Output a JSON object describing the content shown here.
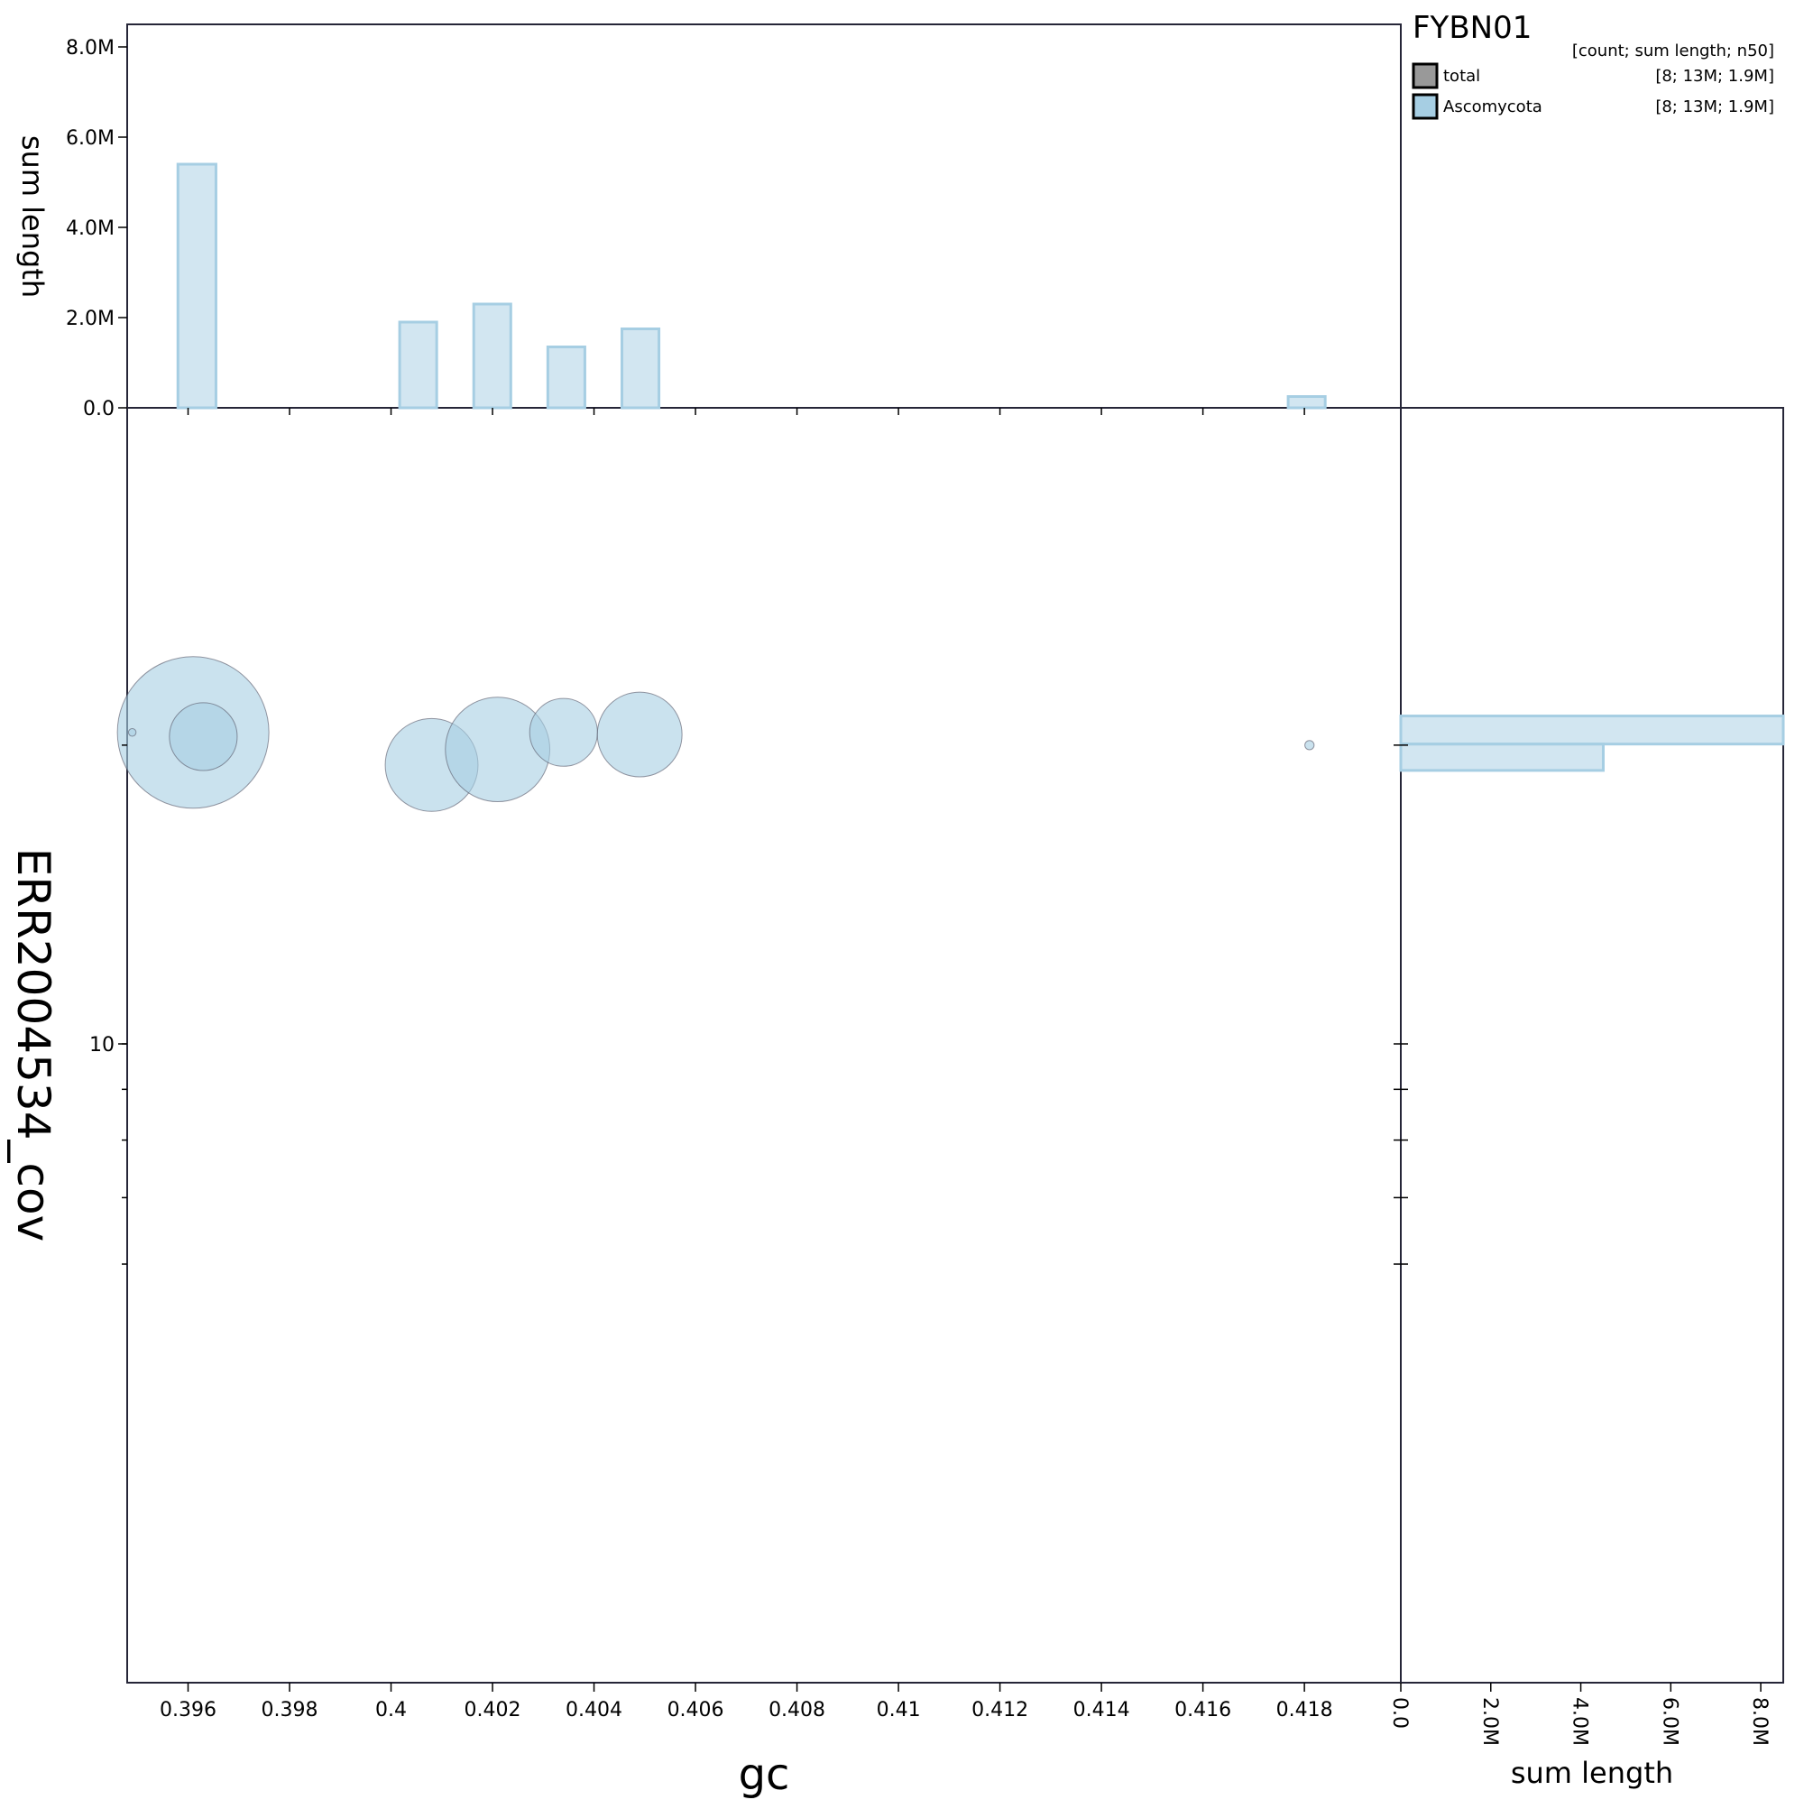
{
  "chart_data": {
    "type": "scatter",
    "title": "FYBN01",
    "xlabel": "gc",
    "ylabel": "ERR2004534_cov",
    "x_ticks": [
      "0.396",
      "0.398",
      "0.4",
      "0.402",
      "0.404",
      "0.406",
      "0.408",
      "0.41",
      "0.412",
      "0.414",
      "0.416",
      "0.418"
    ],
    "y_tick_label": "10",
    "xlim": [
      0.3948,
      0.4199
    ],
    "scale": "log",
    "legend": {
      "header": "[count; sum length; n50]",
      "position": "top-right",
      "entries": [
        {
          "label": "total",
          "stats": "[8; 13M; 1.9M]",
          "color": "#999999"
        },
        {
          "label": "Ascomycota",
          "stats": "[8; 13M; 1.9M]",
          "color": "#a6cee3"
        }
      ]
    },
    "colors": {
      "ascomycota": "#a6cee3",
      "total": "#999999"
    },
    "points": [
      {
        "gc": 0.3961,
        "cov": 20.6,
        "length": 4000000
      },
      {
        "gc": 0.3963,
        "cov": 20.4,
        "length": 800000
      },
      {
        "gc": 0.4008,
        "cov": 19.1,
        "length": 1500000
      },
      {
        "gc": 0.4021,
        "cov": 19.8,
        "length": 1900000
      },
      {
        "gc": 0.4034,
        "cov": 20.6,
        "length": 800000
      },
      {
        "gc": 0.4049,
        "cov": 20.5,
        "length": 1250000
      },
      {
        "gc": 0.4181,
        "cov": 20.0,
        "length": 15000
      },
      {
        "gc": 0.3949,
        "cov": 20.6,
        "length": 10000
      }
    ],
    "top_histogram": {
      "ylabel": "sum length",
      "y_ticks": [
        "0.0",
        "2.0M",
        "4.0M",
        "6.0M",
        "8.0M"
      ],
      "ylim": [
        0,
        8500000
      ],
      "bins": [
        {
          "x0": 0.3958,
          "x1": 0.39655,
          "value": 5400000
        },
        {
          "x0": 0.40017,
          "x1": 0.4009,
          "value": 1900000
        },
        {
          "x0": 0.40163,
          "x1": 0.40236,
          "value": 2300000
        },
        {
          "x0": 0.40309,
          "x1": 0.40382,
          "value": 1350000
        },
        {
          "x0": 0.40455,
          "x1": 0.40528,
          "value": 1750000
        },
        {
          "x0": 0.41768,
          "x1": 0.41841,
          "value": 250000
        }
      ]
    },
    "right_histogram": {
      "xlabel": "sum length",
      "x_ticks": [
        "0.0",
        "2.0M",
        "4.0M",
        "6.0M",
        "8.0M"
      ],
      "xlim": [
        0,
        8500000
      ],
      "bins": [
        {
          "y0": 21.4,
          "y1": 20.05,
          "value": 8500000
        },
        {
          "y0": 20.05,
          "y1": 18.86,
          "value": 4500000
        }
      ]
    }
  }
}
